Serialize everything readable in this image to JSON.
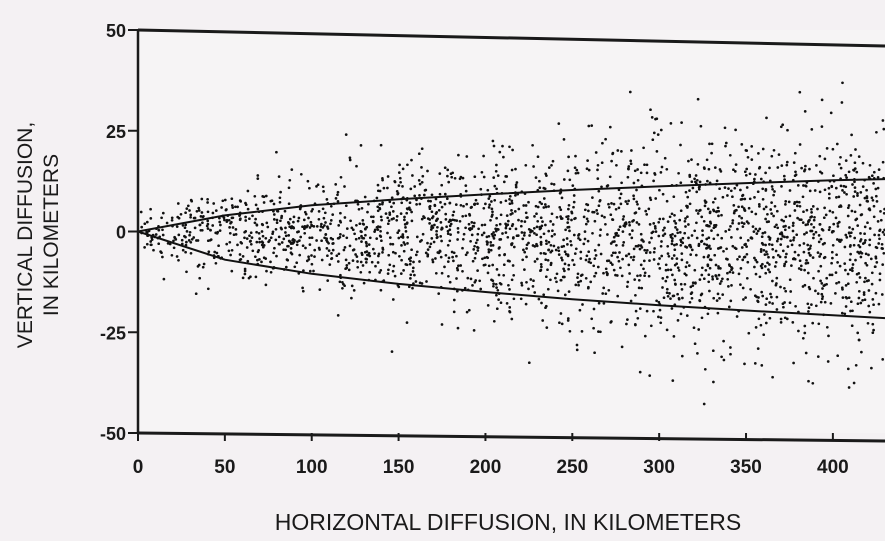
{
  "chart_data": {
    "type": "scatter",
    "title": "",
    "xlabel": "HORIZONTAL DIFFUSION, IN KILOMETERS",
    "ylabel_line1": "VERTICAL DIFFUSION,",
    "ylabel_line2": "IN KILOMETERS",
    "xlim": [
      0,
      430
    ],
    "ylim": [
      -50,
      50
    ],
    "x_ticks": [
      0,
      50,
      100,
      150,
      200,
      250,
      300,
      350,
      400
    ],
    "x_tick_labels": [
      "0",
      "50",
      "100",
      "150",
      "200",
      "250",
      "300",
      "350",
      "400"
    ],
    "y_ticks": [
      50,
      25,
      0,
      -25,
      -50
    ],
    "y_tick_labels": [
      "50",
      "25",
      "0",
      "-25",
      "-50"
    ],
    "grid": false,
    "legend": "none",
    "series": [
      {
        "values_note": "",
        "points": "generated"
      }
    ],
    "envelope_curves": [
      {
        "x": [
          0,
          50,
          100,
          150,
          200,
          250,
          300,
          350,
          400,
          430
        ],
        "y": [
          0,
          4,
          6.5,
          8,
          9.2,
          10.3,
          11.2,
          12,
          12.7,
          13
        ]
      },
      {
        "x": [
          0,
          50,
          100,
          150,
          200,
          250,
          300,
          350,
          400,
          430
        ],
        "y": [
          0,
          -7,
          -10.5,
          -13,
          -15,
          -16.8,
          -18.3,
          -19.6,
          -20.8,
          -21.5
        ]
      }
    ],
    "colors": {
      "points": "#111111",
      "axis": "#1a1a1a",
      "background": "#f4f1f3"
    }
  }
}
